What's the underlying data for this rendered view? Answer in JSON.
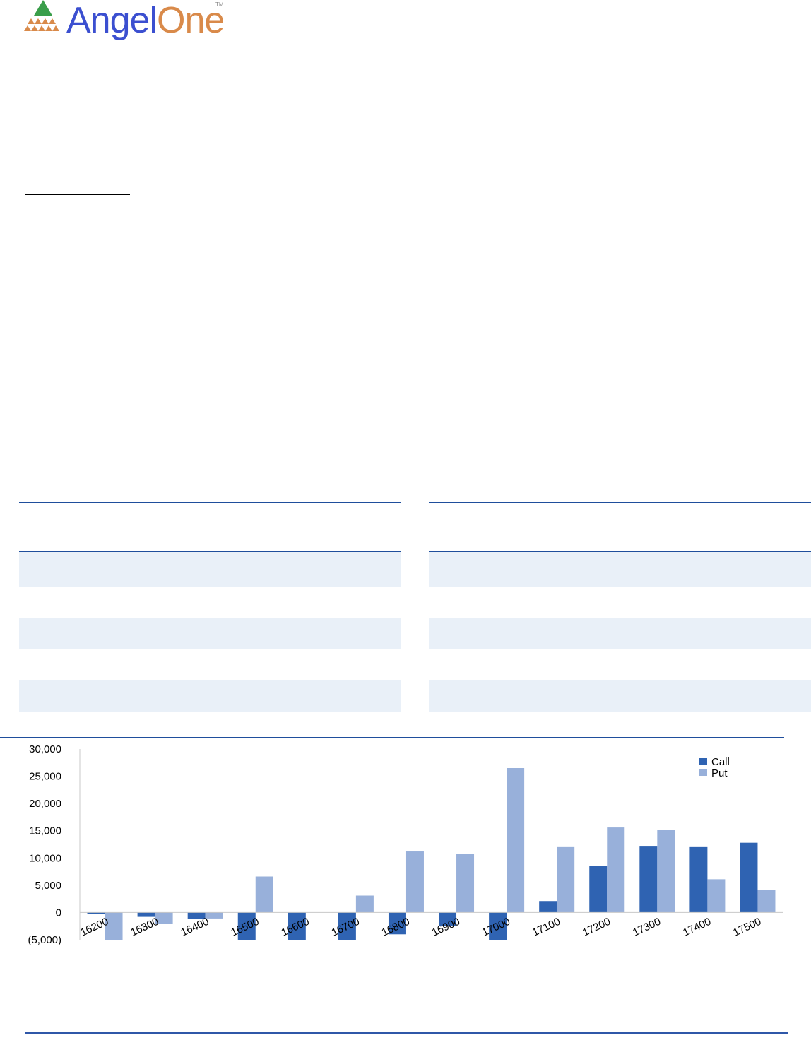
{
  "brand": {
    "name_part1": "Angel",
    "name_part2": "One",
    "trademark": "TM",
    "colors": {
      "blue": "#3b4fd0",
      "orange": "#d98a4a",
      "green": "#3a9e4a"
    }
  },
  "colors": {
    "rule": "#1f4e9c",
    "band": "#e9f0f8",
    "call": "#2f63b2",
    "put": "#98b0da"
  },
  "chart_data": {
    "type": "bar",
    "categories": [
      "16200",
      "16300",
      "16400",
      "16500",
      "16600",
      "16700",
      "16800",
      "16900",
      "17000",
      "17100",
      "17200",
      "17300",
      "17400",
      "17500"
    ],
    "series": [
      {
        "name": "Call",
        "values": [
          -300,
          -800,
          -1200,
          -5000,
          -5000,
          -5000,
          -4000,
          -2500,
          -5000,
          2100,
          8600,
          12100,
          12000,
          12800
        ]
      },
      {
        "name": "Put",
        "values": [
          -5000,
          -2100,
          -1100,
          6600,
          0,
          3100,
          11200,
          10700,
          26500,
          12000,
          15600,
          15200,
          6100,
          4100
        ]
      }
    ],
    "y_ticks": [
      "30,000",
      "25,000",
      "20,000",
      "15,000",
      "10,000",
      "5,000",
      "0",
      "(5,000)"
    ],
    "ylim": [
      -5000,
      30000
    ],
    "grid": false,
    "legend": "top-right"
  }
}
